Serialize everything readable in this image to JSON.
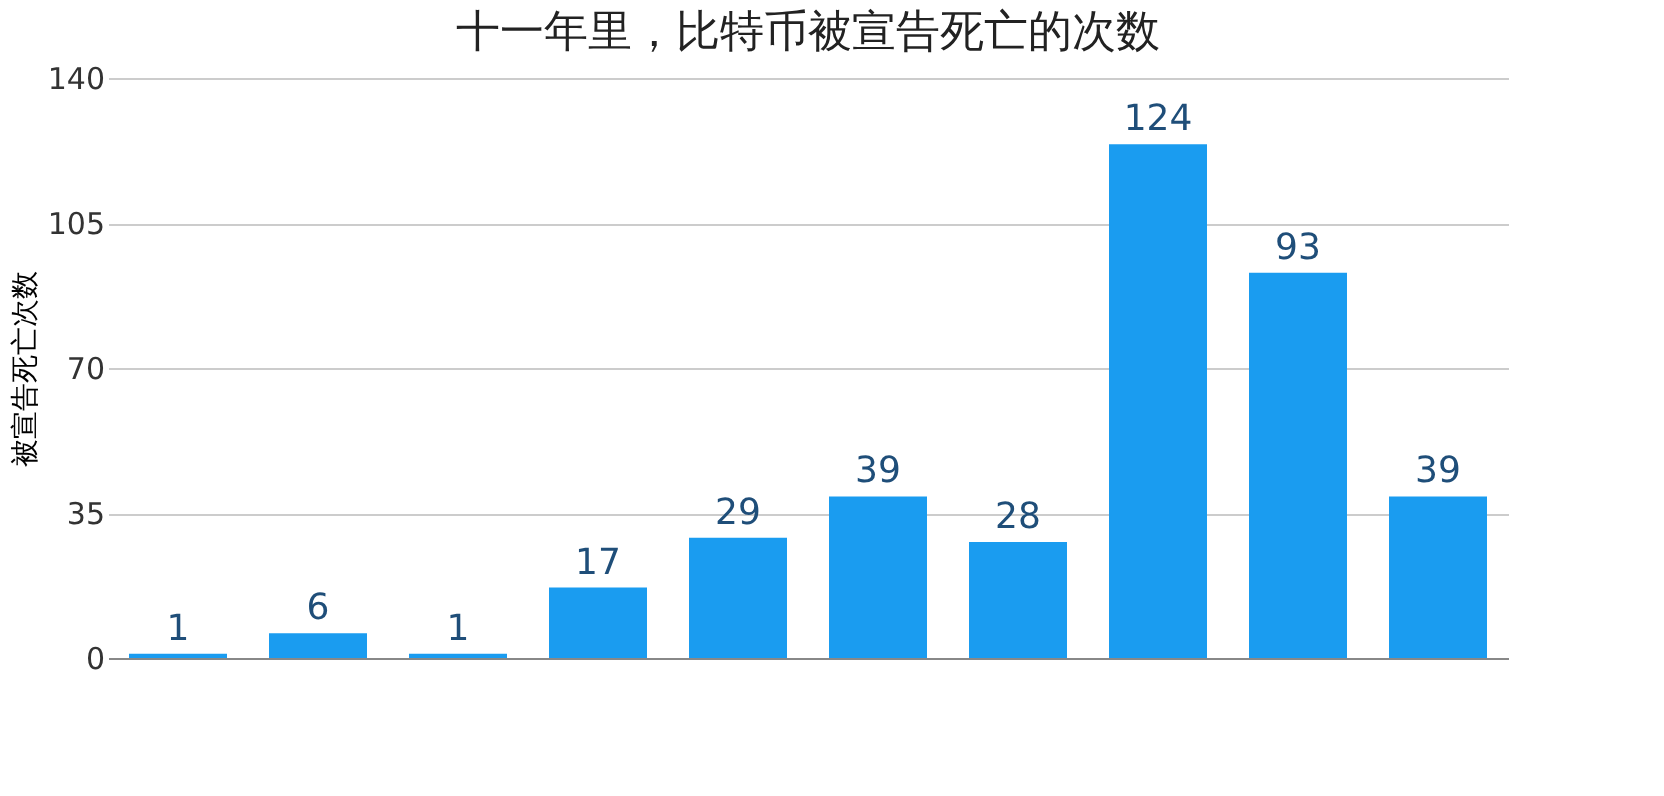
{
  "chart_data": {
    "type": "bar",
    "title": "十一年里，比特币被宣告死亡的次数",
    "ylabel": "被宣告死亡次数",
    "categories": [
      null,
      null,
      null,
      null,
      null,
      null,
      null,
      null,
      null,
      null
    ],
    "values": [
      1,
      6,
      1,
      17,
      29,
      39,
      28,
      124,
      93,
      39
    ],
    "color": "#1a9cf0",
    "ylim": [
      0,
      140
    ],
    "yticks": [
      0,
      35,
      70,
      105,
      140
    ],
    "grid": "y",
    "data_labels": true,
    "tick_labels": "y"
  }
}
